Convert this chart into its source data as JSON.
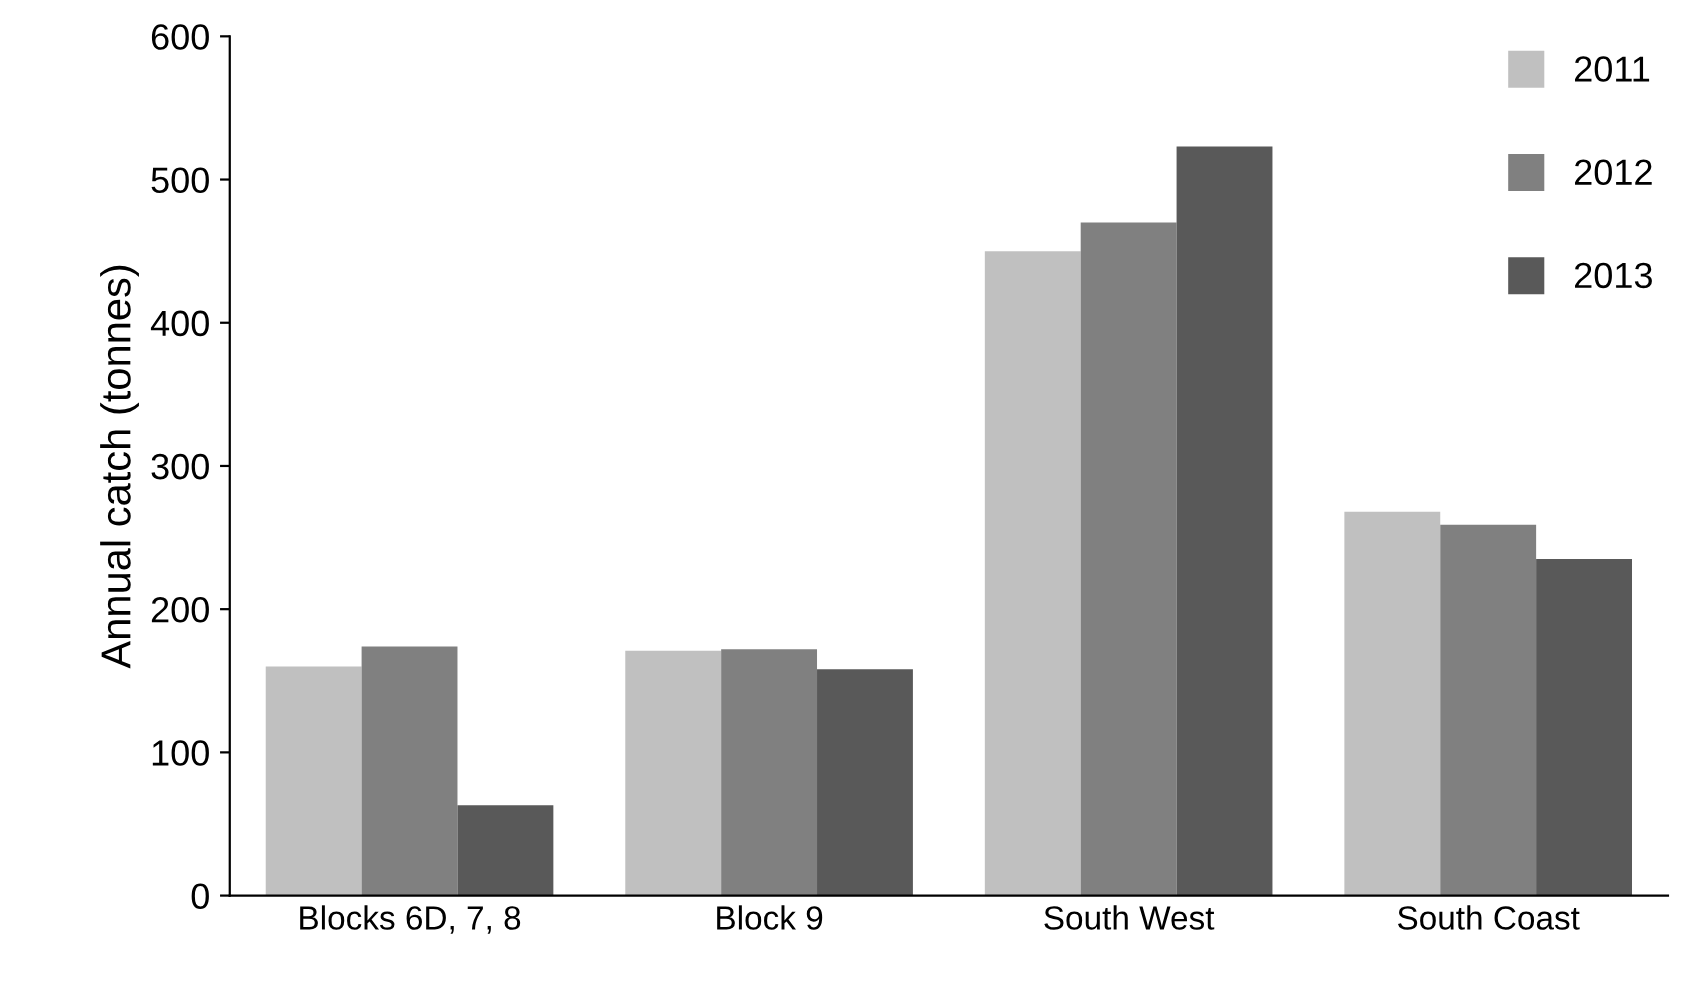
{
  "chart_data": {
    "type": "bar",
    "ylabel": "Annual catch (tonnes)",
    "categories": [
      "Blocks 6D, 7, 8",
      "Block 9",
      "South West",
      "South Coast"
    ],
    "series": [
      {
        "name": "2011",
        "color": "#c0c0c0",
        "values": [
          160,
          171,
          450,
          268
        ]
      },
      {
        "name": "2012",
        "color": "#808080",
        "values": [
          174,
          172,
          470,
          259
        ]
      },
      {
        "name": "2013",
        "color": "#595959",
        "values": [
          63,
          158,
          523,
          235
        ]
      }
    ],
    "ylim": [
      0,
      600
    ],
    "yticks": [
      0,
      100,
      200,
      300,
      400,
      500,
      600
    ],
    "grid": false,
    "legend": "top right"
  }
}
